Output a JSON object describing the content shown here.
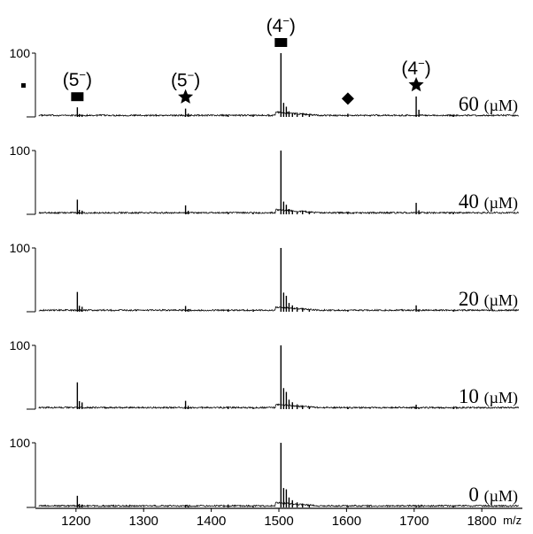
{
  "chart_data": {
    "type": "line",
    "x_axis": {
      "range": [
        1140,
        1860
      ],
      "ticks": [
        1200,
        1300,
        1400,
        1500,
        1600,
        1700,
        1800
      ],
      "unit_label": "m/z"
    },
    "y_axis": {
      "range": [
        0,
        100
      ],
      "tick_label": "100"
    },
    "peaks_mz": {
      "rect_5": 1202,
      "star_5": 1362,
      "rect_4": 1503,
      "diamond": 1602,
      "star_4": 1703
    },
    "series": [
      {
        "name": "60 (µM)",
        "conc_value": "60",
        "conc_unit": "(µM)",
        "peaks": {
          "rect_5": 15,
          "star_5": 13,
          "rect_4": 100,
          "rect_4_sat1": 22,
          "rect_4_sat2": 16,
          "diamond": 5,
          "star_4": 32
        }
      },
      {
        "name": "40 (µM)",
        "conc_value": "40",
        "conc_unit": "(µM)",
        "peaks": {
          "rect_5": 23,
          "star_5": 14,
          "rect_4": 100,
          "rect_4_sat1": 20,
          "rect_4_sat2": 15,
          "diamond": 4,
          "star_4": 18
        }
      },
      {
        "name": "20 (µM)",
        "conc_value": "20",
        "conc_unit": "(µM)",
        "peaks": {
          "rect_5": 31,
          "star_5": 9,
          "rect_4": 100,
          "rect_4_sat1": 30,
          "rect_4_sat2": 25,
          "diamond": 3,
          "star_4": 10
        }
      },
      {
        "name": "10 (µM)",
        "conc_value": "10",
        "conc_unit": "(µM)",
        "peaks": {
          "rect_5": 42,
          "star_5": 13,
          "rect_4": 100,
          "rect_4_sat1": 33,
          "rect_4_sat2": 27,
          "diamond": 3,
          "star_4": 7
        }
      },
      {
        "name": "0 (µM)",
        "conc_value": "0",
        "conc_unit": "(µM)",
        "peaks": {
          "rect_5": 18,
          "star_5": 4,
          "rect_4": 100,
          "rect_4_sat1": 30,
          "rect_4_sat2": 28,
          "diamond": 2,
          "star_4": 3
        }
      }
    ],
    "annotations": [
      {
        "mark": "rectangle",
        "charge": "(5",
        "sup": "−",
        "close": ")",
        "target": "rect_5"
      },
      {
        "mark": "star",
        "charge": "(5",
        "sup": "−",
        "close": ")",
        "target": "star_5"
      },
      {
        "mark": "rectangle",
        "charge": "(4",
        "sup": "−",
        "close": ")",
        "target": "rect_4"
      },
      {
        "mark": "diamond",
        "charge": "",
        "sup": "",
        "close": "",
        "target": "diamond"
      },
      {
        "mark": "star",
        "charge": "(4",
        "sup": "−",
        "close": ")",
        "target": "star_4"
      }
    ],
    "grid": false,
    "legend": "none"
  }
}
